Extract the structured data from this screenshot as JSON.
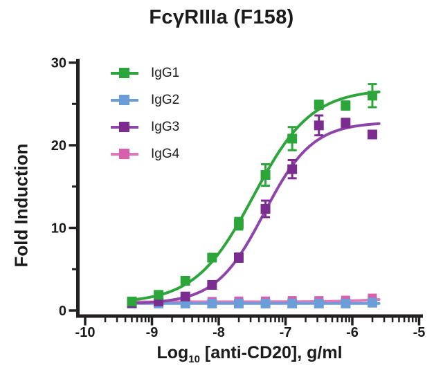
{
  "figure": {
    "title": "FcγRIIIa (F158)",
    "x_axis": {
      "label_main": "Log",
      "label_sub": "10",
      "label_rest": " [anti-CD20], g/ml"
    },
    "y_axis": {
      "label": "Fold Induction"
    }
  },
  "colors": {
    "axis": "#231f20",
    "text": "#1b1b1b"
  },
  "chart_data": {
    "type": "scatter",
    "title": "FcγRIIIa (F158)",
    "xlabel": "Log10 [anti-CD20], g/ml",
    "ylabel": "Fold Induction",
    "xlim": [
      -10,
      -4.95
    ],
    "ylim": [
      0,
      30
    ],
    "x_scale": "log10 (minor ticks at 2-9 per decade)",
    "x_major_ticks": [
      -10,
      -9,
      -8,
      -7,
      -6,
      -5
    ],
    "y_major_ticks": [
      0,
      10,
      20,
      30
    ],
    "y_minor_ticks": [
      5,
      15,
      25
    ],
    "grid": false,
    "legend_position": "inside top-left",
    "x_log10": [
      -9.3,
      -8.9,
      -8.5,
      -8.1,
      -7.7,
      -7.3,
      -6.9,
      -6.5,
      -6.1,
      -5.7
    ],
    "curve_log_range": [
      -9.33,
      -5.6
    ],
    "series": [
      {
        "name": "IgG1",
        "line_color": "#2CA53A",
        "marker_color": "#2CA53A",
        "values": [
          1.1,
          1.9,
          3.6,
          6.4,
          10.5,
          16.4,
          20.8,
          24.9,
          24.8,
          26.0
        ],
        "errors": [
          0.3,
          0.3,
          0.3,
          0.4,
          0.7,
          1.3,
          1.4,
          0.5,
          0.5,
          1.4
        ],
        "fit": {
          "bottom": 0.9,
          "top": 26.8,
          "logEC50": -7.48,
          "hill": 1.0
        }
      },
      {
        "name": "IgG2",
        "line_color": "#6B9DD8",
        "marker_color": "#6B9DD8",
        "values": [
          0.85,
          0.85,
          0.85,
          0.85,
          0.85,
          0.85,
          0.85,
          0.85,
          0.85,
          0.95
        ],
        "errors": [
          0.15,
          0.15,
          0.15,
          0.15,
          0.15,
          0.15,
          0.15,
          0.15,
          0.15,
          0.15
        ],
        "fit": {
          "bottom": 0.85,
          "top": 0.85,
          "logEC50": -7.0,
          "hill": 1.0
        }
      },
      {
        "name": "IgG3",
        "line_color": "#8E44A8",
        "marker_color": "#7B2D8F",
        "values": [
          0.9,
          1.1,
          1.7,
          3.1,
          6.4,
          12.3,
          17.1,
          22.4,
          22.7,
          21.3
        ],
        "errors": [
          0.2,
          0.2,
          0.3,
          0.4,
          0.5,
          1.0,
          1.1,
          1.2,
          0.5,
          0.4
        ],
        "fit": {
          "bottom": 0.8,
          "top": 22.8,
          "logEC50": -7.32,
          "hill": 1.2
        }
      },
      {
        "name": "IgG4",
        "line_color": "#E278BC",
        "marker_color": "#D75FAC",
        "values": [
          1.1,
          1.1,
          1.1,
          1.1,
          1.15,
          1.15,
          1.2,
          1.2,
          1.25,
          1.5
        ],
        "errors": [
          0.15,
          0.15,
          0.15,
          0.15,
          0.15,
          0.15,
          0.15,
          0.15,
          0.15,
          0.15
        ],
        "fit": {
          "bottom": 1.05,
          "top": 2.5,
          "logEC50": -5.0,
          "hill": 1.0
        }
      }
    ]
  }
}
